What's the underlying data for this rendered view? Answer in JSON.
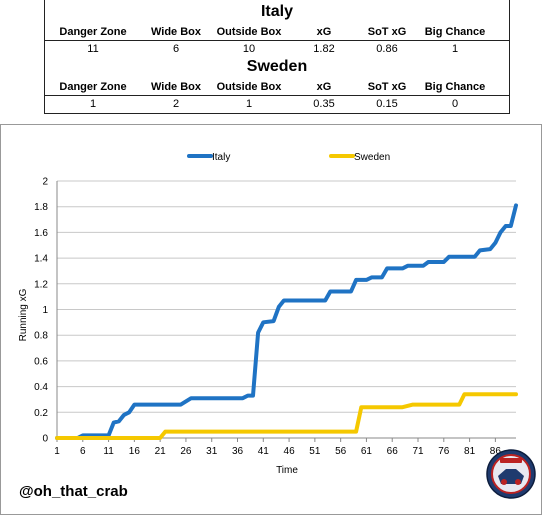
{
  "table": {
    "headers": [
      "Danger Zone",
      "Wide Box",
      "Outside Box",
      "xG",
      "SoT xG",
      "Big Chance"
    ],
    "teams": [
      {
        "name": "Italy",
        "values": [
          "11",
          "6",
          "10",
          "1.82",
          "0.86",
          "1"
        ]
      },
      {
        "name": "Sweden",
        "values": [
          "1",
          "2",
          "1",
          "0.35",
          "0.15",
          "0"
        ]
      }
    ]
  },
  "watermark": "@oh_that_crab",
  "colors": {
    "italy": "#1F73C4",
    "sweden": "#F5C800",
    "axis": "#888888"
  },
  "chart_data": {
    "type": "line",
    "xlabel": "Time",
    "ylabel": "Running xG",
    "xlim": [
      1,
      90
    ],
    "ylim": [
      0,
      2
    ],
    "yticks": [
      0,
      0.2,
      0.4,
      0.6,
      0.8,
      1,
      1.2,
      1.4,
      1.6,
      1.8,
      2
    ],
    "ytick_labels": [
      "0",
      "0.2",
      "0.4",
      "0.6",
      "0.8",
      "1",
      "1.2",
      "1.4",
      "1.6",
      "1.8",
      "2"
    ],
    "xticks": [
      1,
      6,
      11,
      16,
      21,
      26,
      31,
      36,
      41,
      46,
      51,
      56,
      61,
      66,
      71,
      76,
      81,
      86
    ],
    "grid": "horizontal",
    "legend": "top",
    "series": [
      {
        "name": "Italy",
        "color": "#1F73C4",
        "points": [
          [
            1,
            0
          ],
          [
            5,
            0
          ],
          [
            6,
            0.02
          ],
          [
            11,
            0.02
          ],
          [
            12,
            0.12
          ],
          [
            13,
            0.13
          ],
          [
            14,
            0.18
          ],
          [
            15,
            0.2
          ],
          [
            16,
            0.26
          ],
          [
            25,
            0.26
          ],
          [
            27,
            0.31
          ],
          [
            37,
            0.31
          ],
          [
            38,
            0.33
          ],
          [
            39,
            0.33
          ],
          [
            40,
            0.82
          ],
          [
            41,
            0.9
          ],
          [
            43,
            0.91
          ],
          [
            44,
            1.02
          ],
          [
            45,
            1.07
          ],
          [
            53,
            1.07
          ],
          [
            54,
            1.14
          ],
          [
            58,
            1.14
          ],
          [
            59,
            1.23
          ],
          [
            61,
            1.23
          ],
          [
            62,
            1.25
          ],
          [
            64,
            1.25
          ],
          [
            65,
            1.32
          ],
          [
            68,
            1.32
          ],
          [
            69,
            1.34
          ],
          [
            72,
            1.34
          ],
          [
            73,
            1.37
          ],
          [
            76,
            1.37
          ],
          [
            77,
            1.41
          ],
          [
            82,
            1.41
          ],
          [
            83,
            1.46
          ],
          [
            85,
            1.47
          ],
          [
            86,
            1.52
          ],
          [
            87,
            1.6
          ],
          [
            88,
            1.65
          ],
          [
            89,
            1.65
          ],
          [
            90,
            1.81
          ]
        ]
      },
      {
        "name": "Sweden",
        "color": "#F5C800",
        "points": [
          [
            1,
            0
          ],
          [
            21,
            0
          ],
          [
            22,
            0.05
          ],
          [
            59,
            0.05
          ],
          [
            60,
            0.24
          ],
          [
            68,
            0.24
          ],
          [
            70,
            0.26
          ],
          [
            79,
            0.26
          ],
          [
            80,
            0.34
          ],
          [
            90,
            0.34
          ]
        ]
      }
    ]
  }
}
